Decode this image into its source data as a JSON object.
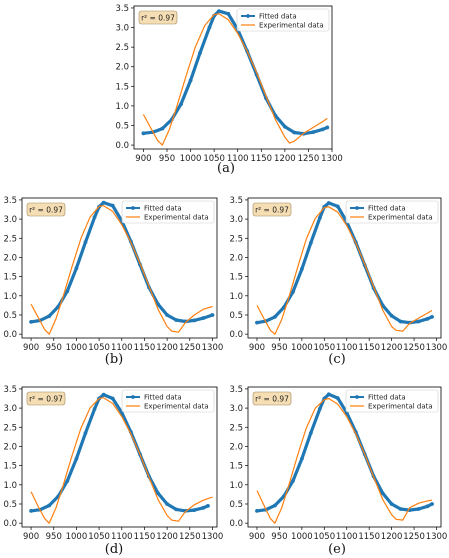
{
  "chart_data": [
    {
      "panel": "a",
      "type": "line",
      "caption": "(a)",
      "annotation": "r² = 0.97",
      "xticks": [
        900,
        950,
        1000,
        1050,
        1100,
        1150,
        1200,
        1250,
        1300
      ],
      "yticks": [
        0.0,
        0.5,
        1.0,
        1.5,
        2.0,
        2.5,
        3.0,
        3.5
      ],
      "xlim": [
        880,
        1300
      ],
      "ylim": [
        -0.1,
        3.55
      ],
      "grid": false,
      "legend_position": "top-right",
      "series": [
        {
          "name": "Fitted data",
          "color": "#1f77b4",
          "x": [
            900,
            920,
            940,
            960,
            980,
            1000,
            1020,
            1040,
            1050,
            1060,
            1080,
            1100,
            1120,
            1140,
            1160,
            1180,
            1200,
            1220,
            1240,
            1260,
            1280,
            1290
          ],
          "y": [
            0.3,
            0.33,
            0.42,
            0.65,
            1.05,
            1.65,
            2.35,
            3.0,
            3.3,
            3.42,
            3.35,
            2.95,
            2.4,
            1.8,
            1.2,
            0.75,
            0.47,
            0.32,
            0.29,
            0.33,
            0.4,
            0.45
          ]
        },
        {
          "name": "Experimental data",
          "color": "#ff7f0e",
          "x": [
            900,
            915,
            930,
            940,
            955,
            970,
            990,
            1010,
            1030,
            1050,
            1060,
            1080,
            1100,
            1120,
            1140,
            1160,
            1180,
            1200,
            1210,
            1220,
            1240,
            1260,
            1280,
            1290
          ],
          "y": [
            0.78,
            0.45,
            0.12,
            0.0,
            0.4,
            0.95,
            1.75,
            2.5,
            3.05,
            3.33,
            3.35,
            3.2,
            2.85,
            2.4,
            1.85,
            1.25,
            0.65,
            0.2,
            0.05,
            0.1,
            0.3,
            0.45,
            0.6,
            0.68
          ]
        }
      ]
    },
    {
      "panel": "b",
      "type": "line",
      "caption": "(b)",
      "annotation": "r² = 0.97",
      "xticks": [
        900,
        950,
        1000,
        1050,
        1100,
        1150,
        1200,
        1250,
        1300
      ],
      "yticks": [
        0.0,
        0.5,
        1.0,
        1.5,
        2.0,
        2.5,
        3.0,
        3.5
      ],
      "xlim": [
        880,
        1310
      ],
      "ylim": [
        -0.1,
        3.55
      ],
      "grid": false,
      "legend_position": "top-right",
      "series": [
        {
          "name": "Fitted data",
          "color": "#1f77b4",
          "x": [
            900,
            920,
            940,
            960,
            980,
            1000,
            1020,
            1040,
            1050,
            1060,
            1080,
            1100,
            1120,
            1140,
            1160,
            1180,
            1200,
            1220,
            1240,
            1260,
            1280,
            1300
          ],
          "y": [
            0.32,
            0.36,
            0.47,
            0.72,
            1.12,
            1.72,
            2.4,
            3.05,
            3.32,
            3.43,
            3.35,
            2.95,
            2.42,
            1.82,
            1.22,
            0.78,
            0.5,
            0.37,
            0.33,
            0.36,
            0.42,
            0.5
          ]
        },
        {
          "name": "Experimental data",
          "color": "#ff7f0e",
          "x": [
            900,
            915,
            930,
            940,
            955,
            970,
            990,
            1010,
            1030,
            1050,
            1060,
            1080,
            1100,
            1120,
            1140,
            1160,
            1180,
            1200,
            1210,
            1225,
            1240,
            1260,
            1280,
            1300
          ],
          "y": [
            0.78,
            0.45,
            0.12,
            0.0,
            0.4,
            0.95,
            1.75,
            2.5,
            3.05,
            3.33,
            3.35,
            3.2,
            2.85,
            2.4,
            1.85,
            1.25,
            0.65,
            0.2,
            0.08,
            0.05,
            0.3,
            0.5,
            0.65,
            0.72
          ]
        }
      ]
    },
    {
      "panel": "c",
      "type": "line",
      "caption": "(c)",
      "annotation": "r² = 0.97",
      "xticks": [
        900,
        950,
        1000,
        1050,
        1100,
        1150,
        1200,
        1250,
        1300
      ],
      "yticks": [
        0.0,
        0.5,
        1.0,
        1.5,
        2.0,
        2.5,
        3.0,
        3.5
      ],
      "xlim": [
        880,
        1310
      ],
      "ylim": [
        -0.1,
        3.55
      ],
      "grid": false,
      "legend_position": "top-right",
      "series": [
        {
          "name": "Fitted data",
          "color": "#1f77b4",
          "x": [
            900,
            920,
            940,
            960,
            980,
            1000,
            1020,
            1040,
            1050,
            1060,
            1080,
            1100,
            1120,
            1140,
            1160,
            1180,
            1200,
            1220,
            1240,
            1260,
            1280,
            1290
          ],
          "y": [
            0.3,
            0.34,
            0.45,
            0.7,
            1.1,
            1.7,
            2.38,
            3.03,
            3.32,
            3.42,
            3.33,
            2.93,
            2.4,
            1.8,
            1.2,
            0.75,
            0.48,
            0.33,
            0.3,
            0.33,
            0.4,
            0.45
          ]
        },
        {
          "name": "Experimental data",
          "color": "#ff7f0e",
          "x": [
            900,
            915,
            930,
            940,
            955,
            970,
            990,
            1010,
            1030,
            1050,
            1060,
            1080,
            1100,
            1120,
            1140,
            1160,
            1180,
            1200,
            1210,
            1225,
            1240,
            1260,
            1280,
            1290
          ],
          "y": [
            0.75,
            0.42,
            0.1,
            0.0,
            0.38,
            0.92,
            1.72,
            2.48,
            3.02,
            3.3,
            3.32,
            3.18,
            2.83,
            2.38,
            1.83,
            1.23,
            0.63,
            0.2,
            0.1,
            0.08,
            0.28,
            0.42,
            0.55,
            0.62
          ]
        }
      ]
    },
    {
      "panel": "d",
      "type": "line",
      "caption": "(d)",
      "annotation": "r² = 0.97",
      "xticks": [
        900,
        950,
        1000,
        1050,
        1100,
        1150,
        1200,
        1250,
        1300
      ],
      "yticks": [
        0.0,
        0.5,
        1.0,
        1.5,
        2.0,
        2.5,
        3.0,
        3.5
      ],
      "xlim": [
        880,
        1310
      ],
      "ylim": [
        -0.1,
        3.55
      ],
      "grid": false,
      "legend_position": "top-right",
      "series": [
        {
          "name": "Fitted data",
          "color": "#1f77b4",
          "x": [
            900,
            920,
            940,
            960,
            980,
            1000,
            1020,
            1040,
            1050,
            1060,
            1080,
            1100,
            1120,
            1140,
            1160,
            1180,
            1200,
            1220,
            1240,
            1260,
            1280,
            1290
          ],
          "y": [
            0.32,
            0.35,
            0.46,
            0.7,
            1.1,
            1.68,
            2.35,
            2.98,
            3.25,
            3.35,
            3.25,
            2.88,
            2.38,
            1.8,
            1.22,
            0.78,
            0.5,
            0.36,
            0.32,
            0.34,
            0.4,
            0.45
          ]
        },
        {
          "name": "Experimental data",
          "color": "#ff7f0e",
          "x": [
            900,
            915,
            930,
            940,
            955,
            970,
            990,
            1010,
            1030,
            1050,
            1060,
            1080,
            1100,
            1120,
            1140,
            1160,
            1180,
            1200,
            1210,
            1225,
            1240,
            1260,
            1280,
            1300
          ],
          "y": [
            0.82,
            0.45,
            0.12,
            0.0,
            0.4,
            0.95,
            1.75,
            2.48,
            3.0,
            3.25,
            3.27,
            3.12,
            2.78,
            2.33,
            1.8,
            1.2,
            0.62,
            0.2,
            0.08,
            0.05,
            0.3,
            0.48,
            0.6,
            0.68
          ]
        }
      ]
    },
    {
      "panel": "e",
      "type": "line",
      "caption": "(e)",
      "annotation": "r² = 0.97",
      "xticks": [
        900,
        950,
        1000,
        1050,
        1100,
        1150,
        1200,
        1250,
        1300
      ],
      "yticks": [
        0.0,
        0.5,
        1.0,
        1.5,
        2.0,
        2.5,
        3.0,
        3.5
      ],
      "xlim": [
        880,
        1310
      ],
      "ylim": [
        -0.1,
        3.55
      ],
      "grid": false,
      "legend_position": "top-right",
      "series": [
        {
          "name": "Fitted data",
          "color": "#1f77b4",
          "x": [
            900,
            920,
            940,
            960,
            980,
            1000,
            1020,
            1040,
            1050,
            1060,
            1080,
            1100,
            1120,
            1140,
            1160,
            1180,
            1200,
            1220,
            1240,
            1260,
            1280,
            1290
          ],
          "y": [
            0.32,
            0.35,
            0.46,
            0.7,
            1.1,
            1.68,
            2.35,
            2.98,
            3.25,
            3.36,
            3.26,
            2.88,
            2.38,
            1.8,
            1.22,
            0.78,
            0.5,
            0.37,
            0.34,
            0.37,
            0.44,
            0.5
          ]
        },
        {
          "name": "Experimental data",
          "color": "#ff7f0e",
          "x": [
            900,
            915,
            930,
            940,
            955,
            970,
            990,
            1010,
            1030,
            1050,
            1060,
            1080,
            1100,
            1120,
            1140,
            1160,
            1180,
            1200,
            1210,
            1225,
            1240,
            1260,
            1280,
            1290
          ],
          "y": [
            0.85,
            0.48,
            0.12,
            0.0,
            0.4,
            0.95,
            1.75,
            2.48,
            3.0,
            3.22,
            3.25,
            3.1,
            2.78,
            2.33,
            1.8,
            1.2,
            0.62,
            0.22,
            0.1,
            0.08,
            0.4,
            0.52,
            0.58,
            0.6
          ]
        }
      ]
    }
  ]
}
